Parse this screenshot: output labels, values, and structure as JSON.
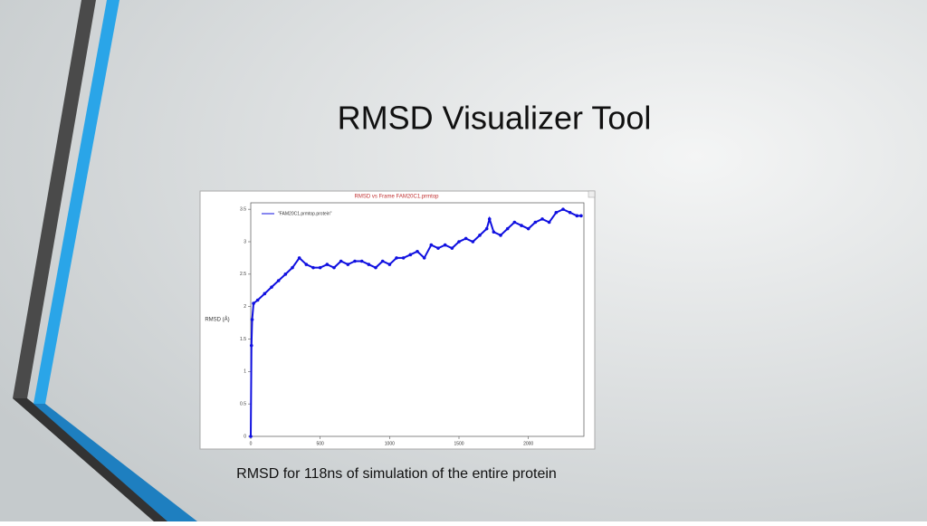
{
  "slide": {
    "title": "RMSD Visualizer Tool",
    "caption": "RMSD for 118ns of simulation of the entire protein"
  },
  "chart_data": {
    "type": "line",
    "title": "RMSD vs Frame  FAM20C1.prmtop",
    "y_label": "RMSD (Å)",
    "x": [
      0,
      5,
      10,
      20,
      50,
      100,
      150,
      200,
      250,
      300,
      350,
      400,
      450,
      500,
      550,
      600,
      650,
      700,
      750,
      800,
      850,
      900,
      950,
      1000,
      1050,
      1100,
      1150,
      1200,
      1250,
      1300,
      1350,
      1400,
      1450,
      1500,
      1550,
      1600,
      1650,
      1700,
      1720,
      1750,
      1800,
      1850,
      1900,
      1950,
      2000,
      2050,
      2100,
      2150,
      2200,
      2250,
      2300,
      2350,
      2380
    ],
    "series": [
      {
        "name": "\"FAM20C1.prmtop.protein\"",
        "color": "#1010e0",
        "values": [
          0,
          1.4,
          1.8,
          2.05,
          2.1,
          2.2,
          2.3,
          2.4,
          2.5,
          2.6,
          2.75,
          2.65,
          2.6,
          2.6,
          2.65,
          2.6,
          2.7,
          2.65,
          2.7,
          2.7,
          2.65,
          2.6,
          2.7,
          2.65,
          2.75,
          2.75,
          2.8,
          2.85,
          2.75,
          2.95,
          2.9,
          2.95,
          2.9,
          3.0,
          3.05,
          3.0,
          3.1,
          3.2,
          3.35,
          3.15,
          3.1,
          3.2,
          3.3,
          3.25,
          3.2,
          3.3,
          3.35,
          3.3,
          3.45,
          3.5,
          3.45,
          3.4,
          3.4
        ]
      }
    ],
    "xlim": [
      0,
      2400
    ],
    "ylim": [
      0,
      3.6
    ],
    "xticks": [
      0,
      500,
      1000,
      1500,
      2000
    ],
    "yticks": [
      0,
      0.5,
      1,
      1.5,
      2,
      2.5,
      3,
      3.5
    ],
    "legend": "upper left"
  }
}
